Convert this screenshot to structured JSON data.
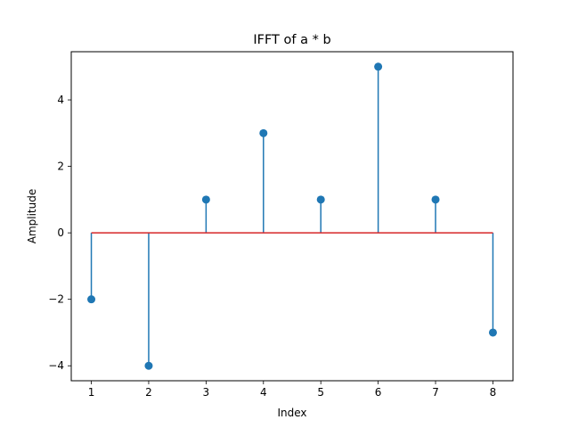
{
  "chart_data": {
    "type": "stem",
    "title": "IFFT of a * b",
    "xlabel": "Index",
    "ylabel": "Amplitude",
    "x": [
      1,
      2,
      3,
      4,
      5,
      6,
      7,
      8
    ],
    "y": [
      -2,
      -4,
      1,
      3,
      1,
      5,
      1,
      -3
    ],
    "xlim": [
      0.65,
      8.35
    ],
    "ylim": [
      -4.45,
      5.45
    ],
    "xticks": [
      1,
      2,
      3,
      4,
      5,
      6,
      7,
      8
    ],
    "yticks": [
      -4,
      -2,
      0,
      2,
      4
    ],
    "ytick_labels": [
      "−4",
      "−2",
      "0",
      "2",
      "4"
    ],
    "baseline": 0,
    "grid": false,
    "colors": {
      "stem": "#1f77b4",
      "baseline": "#d62728"
    }
  }
}
